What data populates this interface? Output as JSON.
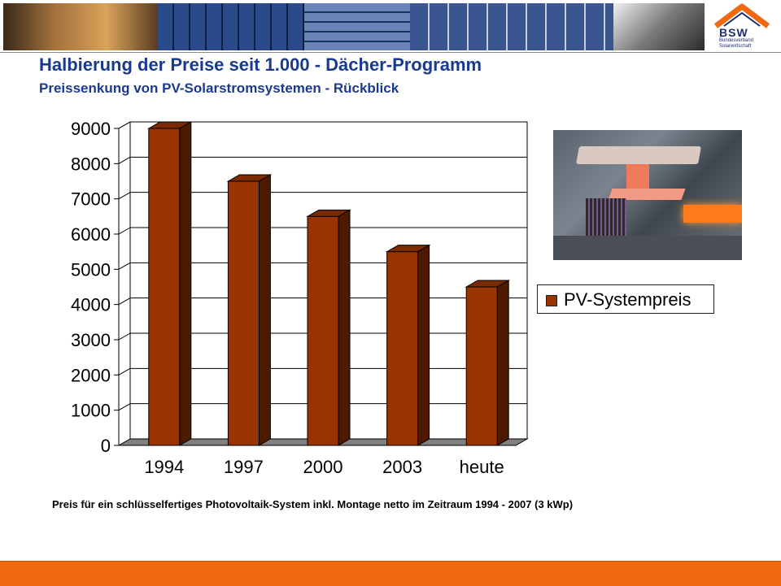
{
  "slide": {
    "title": "Halbierung der Preise seit 1.000 - Dächer-Programm",
    "subtitle": "Preissenkung von PV-Solarstromsystemen - Rückblick",
    "footnote": "Preis für ein schlüsselfertiges Photovoltaik-System inkl. Montage netto im Zeitraum 1994 - 2007 (3 kWp)"
  },
  "logo": {
    "text": "BSW",
    "line1": "Bundesverband",
    "line2": "Solarwirtschaft",
    "color": "#1f2f6b",
    "accent": "#f26a10"
  },
  "legend": {
    "swatch_color": "#993300",
    "label": "PV-Systempreis"
  },
  "chart_data": {
    "type": "bar",
    "categories": [
      "1994",
      "1997",
      "2000",
      "2003",
      "heute"
    ],
    "series": [
      {
        "name": "PV-Systempreis",
        "values": [
          9000,
          7500,
          6500,
          5500,
          4500
        ],
        "color": "#993300"
      }
    ],
    "ylim": [
      0,
      9000
    ],
    "yticks": [
      0,
      1000,
      2000,
      3000,
      4000,
      5000,
      6000,
      7000,
      8000,
      9000
    ],
    "grid": true,
    "style": "3d",
    "legend_position": "right"
  }
}
